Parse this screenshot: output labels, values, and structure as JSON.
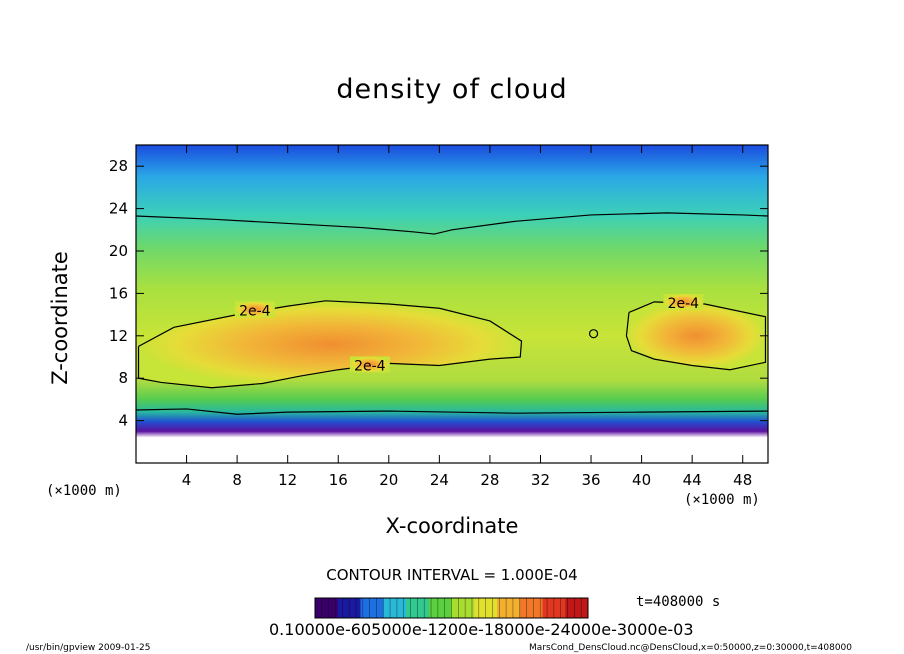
{
  "chart_data": {
    "type": "heatmap",
    "title": "density of cloud",
    "xlabel": "X-coordinate",
    "ylabel": "Z-coordinate",
    "x_unit_left": "(×1000 m)",
    "x_unit_right": "(×1000 m)",
    "xlim": [
      0,
      50
    ],
    "ylim": [
      0,
      30
    ],
    "x_ticks": [
      4,
      8,
      12,
      16,
      20,
      24,
      28,
      32,
      36,
      40,
      44,
      48
    ],
    "y_ticks": [
      4,
      8,
      12,
      16,
      20,
      24,
      28
    ],
    "contour_labels": [
      "2e-4",
      "2e-4",
      "2e-4"
    ],
    "contour_interval_text": "CONTOUR INTERVAL = 1.000E-04",
    "time_text": "t=408000 s",
    "colorbar_labels_text": "0.10000e-605000e-1200e-18000e-24000e-3000e-03",
    "colorbar_colors": [
      "#3a006a",
      "#1a1aa0",
      "#1e6fe0",
      "#2ab8d8",
      "#32c890",
      "#5ad040",
      "#a8dc30",
      "#e0e030",
      "#f2b030",
      "#f07828",
      "#e03820",
      "#c01818"
    ],
    "grid": false,
    "legend": "none"
  },
  "footer": {
    "left": "/usr/bin/gpview   2009-01-25",
    "right": "MarsCond_DensCloud.nc@DensCloud,x=0:50000,z=0:30000,t=408000"
  }
}
